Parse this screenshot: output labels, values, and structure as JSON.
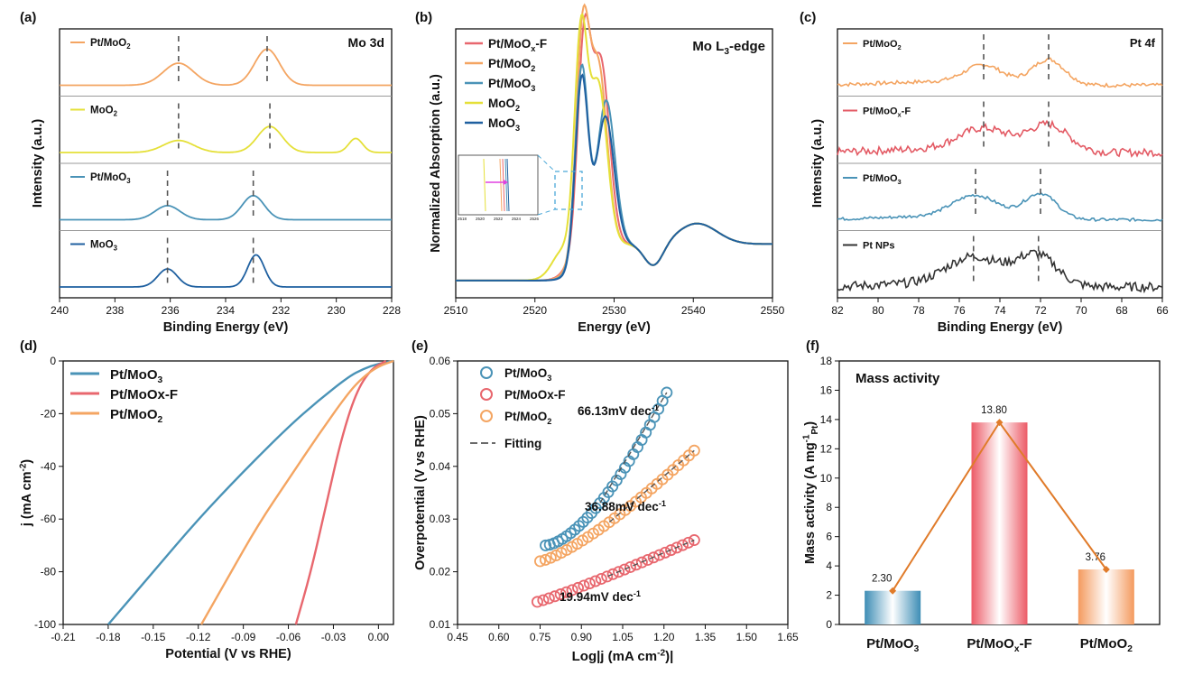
{
  "figure": {
    "panel_labels": [
      "(a)",
      "(b)",
      "(c)",
      "(d)",
      "(e)",
      "(f)"
    ]
  },
  "chart_data": [
    {
      "panel": "(a)",
      "type": "line",
      "title": "Mo 3d",
      "xlabel": "Binding Energy (eV)",
      "ylabel": "Intensity (a.u.)",
      "xlim": [
        240,
        228
      ],
      "xticks": [
        "240",
        "238",
        "236",
        "234",
        "232",
        "230",
        "228"
      ],
      "series": [
        {
          "name": "Pt/MoO2",
          "label_main": "Pt/MoO",
          "label_sub": "2",
          "color": "#f4a562",
          "peaks": [
            {
              "x": 235.7,
              "h": 0.55,
              "w": 0.55
            },
            {
              "x": 232.5,
              "h": 0.9,
              "w": 0.45
            }
          ],
          "dashes": [
            235.7,
            232.5
          ]
        },
        {
          "name": "MoO2",
          "label_main": "MoO",
          "label_sub": "2",
          "color": "#e5e039",
          "peaks": [
            {
              "x": 235.7,
              "h": 0.3,
              "w": 0.55
            },
            {
              "x": 232.4,
              "h": 0.65,
              "w": 0.45
            },
            {
              "x": 229.3,
              "h": 0.35,
              "w": 0.25
            }
          ],
          "dashes": [
            235.7,
            232.4
          ]
        },
        {
          "name": "Pt/MoO3",
          "label_main": "Pt/MoO",
          "label_sub": "3",
          "color": "#4a93b7",
          "peaks": [
            {
              "x": 236.1,
              "h": 0.35,
              "w": 0.45
            },
            {
              "x": 233.0,
              "h": 0.6,
              "w": 0.4
            }
          ],
          "dashes": [
            236.1,
            233.0
          ]
        },
        {
          "name": "MoO3",
          "label_main": "MoO",
          "label_sub": "3",
          "color": "#1f60a0",
          "peaks": [
            {
              "x": 236.1,
              "h": 0.45,
              "w": 0.35
            },
            {
              "x": 232.9,
              "h": 0.8,
              "w": 0.3
            }
          ],
          "dashes": [
            236.1,
            233.0
          ]
        }
      ]
    },
    {
      "panel": "(b)",
      "type": "line",
      "title_main": "Mo L",
      "title_sub": "3",
      "title_tail": "-edge",
      "xlabel": "Energy (eV)",
      "ylabel": "Normalized Absorption (a.u.)",
      "xlim": [
        2510,
        2550
      ],
      "xticks": [
        "2510",
        "2520",
        "2530",
        "2540",
        "2550"
      ],
      "series": [
        {
          "name": "Pt/MoOx-F",
          "label_main": "Pt/MoO",
          "label_sub": "x",
          "label_tail": "-F",
          "color": "#e8676e",
          "edge": 2524.2,
          "p1": 2526.2,
          "h1": 0.86,
          "p2": 2528.3,
          "h2": 0.8
        },
        {
          "name": "Pt/MoO2",
          "label_main": "Pt/MoO",
          "label_sub": "2",
          "label_tail": "",
          "color": "#f4a562",
          "edge": 2524.4,
          "p1": 2526.0,
          "h1": 0.88,
          "p2": 2528.0,
          "h2": 0.78
        },
        {
          "name": "Pt/MoO3",
          "label_main": "Pt/MoO",
          "label_sub": "3",
          "label_tail": "",
          "color": "#4a93b7",
          "edge": 2524.8,
          "p1": 2525.9,
          "h1": 0.8,
          "p2": 2529.0,
          "h2": 0.63
        },
        {
          "name": "MoO2",
          "label_main": "MoO",
          "label_sub": "2",
          "label_tail": "",
          "color": "#e5e039",
          "edge": 2522.2,
          "p1": 2525.8,
          "h1": 0.9,
          "p2": 2528.0,
          "h2": 0.7
        },
        {
          "name": "MoO3",
          "label_main": "MoO",
          "label_sub": "3",
          "label_tail": "",
          "color": "#1f60a0",
          "edge": 2525.0,
          "p1": 2525.9,
          "h1": 0.76,
          "p2": 2528.9,
          "h2": 0.56
        }
      ],
      "inset_ticks": [
        "2518",
        "2520",
        "2522",
        "2524",
        "2526"
      ]
    },
    {
      "panel": "(c)",
      "type": "line",
      "title": "Pt 4f",
      "xlabel": "Binding Energy (eV)",
      "ylabel": "Intensity (a.u.)",
      "xlim": [
        82,
        66
      ],
      "xticks": [
        "82",
        "80",
        "78",
        "76",
        "74",
        "72",
        "70",
        "68",
        "66"
      ],
      "series": [
        {
          "name": "Pt/MoO2",
          "label_main": "Pt/MoO",
          "label_sub": "2",
          "label_tail": "",
          "color": "#f4a562",
          "peaks": [
            {
              "x": 74.8,
              "h": 0.45,
              "w": 0.9
            },
            {
              "x": 71.6,
              "h": 0.65,
              "w": 0.8
            }
          ],
          "noise": 0.05,
          "dashes": [
            74.8,
            71.6
          ]
        },
        {
          "name": "Pt/MoOx-F",
          "label_main": "Pt/MoO",
          "label_sub": "x",
          "label_tail": "-F",
          "color": "#e35a64",
          "peaks": [
            {
              "x": 74.8,
              "h": 0.55,
              "w": 1.2
            },
            {
              "x": 71.6,
              "h": 0.7,
              "w": 1.0
            }
          ],
          "noise": 0.1,
          "dashes": [
            74.8,
            71.6
          ]
        },
        {
          "name": "Pt/MoO3",
          "label_main": "Pt/MoO",
          "label_sub": "3",
          "label_tail": "",
          "color": "#4a93b7",
          "peaks": [
            {
              "x": 75.2,
              "h": 0.55,
              "w": 1.1
            },
            {
              "x": 72.0,
              "h": 0.65,
              "w": 0.8
            }
          ],
          "noise": 0.04,
          "dashes": [
            75.2,
            72.0
          ]
        },
        {
          "name": "Pt NPs",
          "label_main": "Pt NPs",
          "label_sub": "",
          "label_tail": "",
          "color": "#333333",
          "peaks": [
            {
              "x": 75.3,
              "h": 0.7,
              "w": 1.3
            },
            {
              "x": 72.2,
              "h": 0.8,
              "w": 1.0
            }
          ],
          "noise": 0.12,
          "dashes": [
            75.3,
            72.1
          ]
        }
      ]
    },
    {
      "panel": "(d)",
      "type": "line",
      "xlabel": "Potential (V vs RHE)",
      "ylabel_main": "j (mA cm",
      "ylabel_sup": "-2",
      "ylabel_tail": ")",
      "xlim": [
        -0.21,
        0.01
      ],
      "ylim": [
        -100,
        0
      ],
      "xticks": [
        "-0.21",
        "-0.18",
        "-0.15",
        "-0.12",
        "-0.09",
        "-0.06",
        "-0.03",
        "0.00"
      ],
      "yticks": [
        "0",
        "-20",
        "-40",
        "-60",
        "-80",
        "-100"
      ],
      "series": [
        {
          "name": "Pt/MoO3",
          "label_main": "Pt/MoO",
          "label_sub": "3",
          "color": "#4a93b7",
          "x": [
            0.01,
            0.0,
            -0.01,
            -0.02,
            -0.04,
            -0.06,
            -0.09,
            -0.12,
            -0.15,
            -0.18
          ],
          "y": [
            0,
            -1,
            -3,
            -6,
            -15,
            -25,
            -42,
            -60,
            -80,
            -100
          ]
        },
        {
          "name": "Pt/MoOx-F",
          "label_main": "Pt/MoOx-F",
          "label_sub": "",
          "color": "#e8676e",
          "x": [
            0.005,
            -0.005,
            -0.015,
            -0.025,
            -0.035,
            -0.045,
            -0.055
          ],
          "y": [
            0,
            -3,
            -12,
            -30,
            -55,
            -80,
            -100
          ]
        },
        {
          "name": "Pt/MoO2",
          "label_main": "Pt/MoO",
          "label_sub": "2",
          "color": "#f4a562",
          "x": [
            0.01,
            0.0,
            -0.01,
            -0.02,
            -0.04,
            -0.06,
            -0.08,
            -0.1,
            -0.118
          ],
          "y": [
            0,
            -2,
            -6,
            -12,
            -28,
            -45,
            -62,
            -82,
            -100
          ]
        }
      ]
    },
    {
      "panel": "(e)",
      "type": "scatter",
      "xlabel_main": "Log|j (mA cm",
      "xlabel_sup": "-2",
      "xlabel_tail": ")|",
      "ylabel": "Overpotential (V vs RHE)",
      "xlim": [
        0.45,
        1.65
      ],
      "ylim": [
        0.01,
        0.06
      ],
      "xticks": [
        "0.45",
        "0.60",
        "0.75",
        "0.90",
        "1.05",
        "1.20",
        "1.35",
        "1.50",
        "1.65"
      ],
      "yticks": [
        "0.01",
        "0.02",
        "0.03",
        "0.04",
        "0.05",
        "0.06"
      ],
      "fitting_label": "Fitting",
      "series": [
        {
          "name": "Pt/MoO3",
          "label_main": "Pt/MoO",
          "label_sub": "3",
          "color": "#4a93b7",
          "x0": 0.77,
          "x1": 1.21,
          "y0": 0.025,
          "y1": 0.054,
          "curve": 1.6,
          "n": 30,
          "slope_main": "66.13mV dec",
          "slope_sup": "-1"
        },
        {
          "name": "Pt/MoOx-F",
          "label_main": "Pt/MoOx-F",
          "label_sub": "",
          "color": "#e8676e",
          "x0": 0.74,
          "x1": 1.31,
          "y0": 0.0143,
          "y1": 0.026,
          "curve": 1.1,
          "n": 28,
          "slope_main": "19.94mV dec",
          "slope_sup": "-1"
        },
        {
          "name": "Pt/MoO2",
          "label_main": "Pt/MoO",
          "label_sub": "2",
          "color": "#f4a562",
          "x0": 0.75,
          "x1": 1.31,
          "y0": 0.022,
          "y1": 0.043,
          "curve": 1.3,
          "n": 30,
          "slope_main": "36.88mV dec",
          "slope_sup": "-1"
        }
      ]
    },
    {
      "panel": "(f)",
      "type": "bar",
      "title": "Mass activity",
      "ylabel_main": "Mass activity (A mg",
      "ylabel_sup": "-1",
      "ylabel_sub": "Pt",
      "ylabel_tail": ")",
      "ylim": [
        0,
        18
      ],
      "yticks": [
        "0",
        "2",
        "4",
        "6",
        "8",
        "10",
        "12",
        "14",
        "16",
        "18"
      ],
      "categories": [
        {
          "main": "Pt/MoO",
          "sub": "3",
          "tail": ""
        },
        {
          "main": "Pt/MoO",
          "sub": "x",
          "tail": "-F"
        },
        {
          "main": "Pt/MoO",
          "sub": "2",
          "tail": ""
        }
      ],
      "values": [
        2.3,
        13.8,
        3.76
      ],
      "value_labels": [
        "2.30",
        "13.80",
        "3.76"
      ],
      "bar_colors": [
        "#3d8db5",
        "#ec5a66",
        "#f49a5e"
      ],
      "line_color": "#e07b2a"
    }
  ]
}
